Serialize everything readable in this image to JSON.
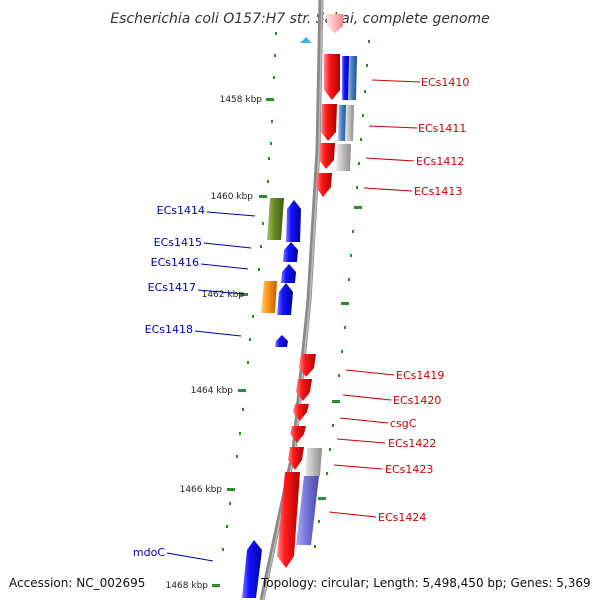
{
  "title": "Escherichia coli O157:H7 str. Sakai, complete genome",
  "footer": {
    "accession": "Accession: NC_002695",
    "topology": "Topology: circular; Length: 5,498,450 bp; Genes: 5,369"
  },
  "colors": {
    "forward_label": "#cc0000",
    "reverse_label": "#0000aa",
    "tick": "#2e8b2e",
    "backbone": "#888888",
    "red_gene": "#ee1111",
    "blue_gene": "#1111ee"
  },
  "kbp_ticks": [
    "1458 kbp",
    "1460 kbp",
    "1462 kbp",
    "1464 kbp",
    "1466 kbp",
    "1468 kbp"
  ],
  "forward_genes": [
    "ECs1410",
    "ECs1411",
    "ECs1412",
    "ECs1413",
    "ECs1419",
    "ECs1420",
    "csgC",
    "ECs1422",
    "ECs1423",
    "ECs1424"
  ],
  "reverse_genes": [
    "ECs1414",
    "ECs1415",
    "ECs1416",
    "ECs1417",
    "ECs1418",
    "mdoC"
  ]
}
